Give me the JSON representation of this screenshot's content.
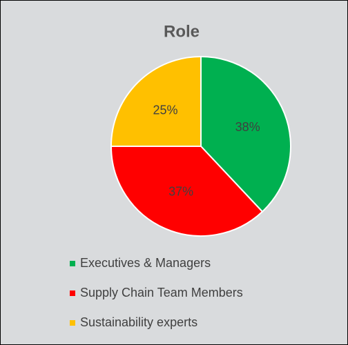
{
  "chart_data": {
    "type": "pie",
    "title": "Role",
    "categories": [
      "Executives & Managers",
      "Supply Chain Team Members",
      "Sustainability experts"
    ],
    "values": [
      38,
      37,
      25
    ],
    "value_labels": [
      "38%",
      "37%",
      "25%"
    ],
    "colors": [
      "#00b050",
      "#ff0000",
      "#ffc000"
    ],
    "legend": "bottom"
  }
}
